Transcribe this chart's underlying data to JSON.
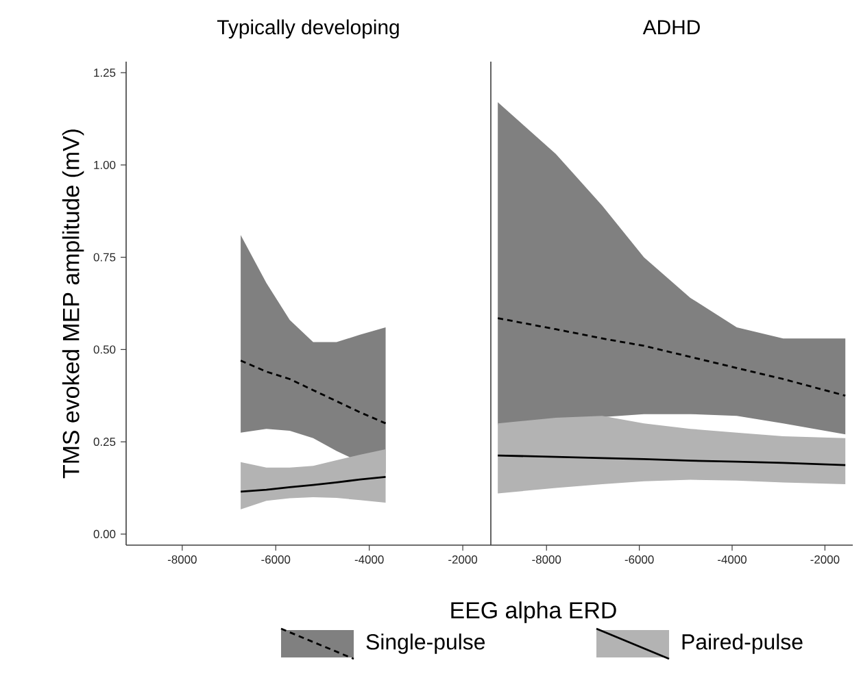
{
  "chart_data": [
    {
      "type": "line",
      "title": "Typically developing",
      "xlabel": "EEG alpha ERD",
      "ylabel": "TMS evoked MEP amplitude (mV)",
      "xlim": [
        -9200,
        -1400
      ],
      "ylim": [
        -0.03,
        1.28
      ],
      "xticks": [
        -8000,
        -6000,
        -4000,
        -2000
      ],
      "yticks": [
        {
          "value": 0,
          "label": "0.00"
        },
        {
          "value": 0.25,
          "label": "0.25"
        },
        {
          "value": 0.5,
          "label": "0.50"
        },
        {
          "value": 0.75,
          "label": "0.75"
        },
        {
          "value": 1,
          "label": "1.00"
        },
        {
          "value": 1.25,
          "label": "1.25"
        }
      ],
      "legend": "bottom",
      "grid": false,
      "series": [
        {
          "name": "Single-pulse",
          "color": "#000000",
          "line_style": "dashed",
          "x": [
            -6750,
            -6200,
            -5700,
            -5200,
            -4700,
            -4200,
            -3650
          ],
          "values": [
            0.47,
            0.44,
            0.42,
            0.39,
            0.36,
            0.33,
            0.3
          ],
          "lower": [
            0.275,
            0.285,
            0.28,
            0.26,
            0.225,
            0.195,
            0.165
          ],
          "upper": [
            0.81,
            0.68,
            0.58,
            0.52,
            0.52,
            0.54,
            0.56
          ]
        },
        {
          "name": "Paired-pulse",
          "color": "#000000",
          "line_style": "solid",
          "x": [
            -6750,
            -6200,
            -5700,
            -5200,
            -4700,
            -4200,
            -3650
          ],
          "values": [
            0.115,
            0.12,
            0.127,
            0.133,
            0.14,
            0.148,
            0.155
          ],
          "lower": [
            0.067,
            0.09,
            0.097,
            0.1,
            0.098,
            0.092,
            0.085
          ],
          "upper": [
            0.195,
            0.18,
            0.18,
            0.185,
            0.2,
            0.215,
            0.23
          ]
        }
      ]
    },
    {
      "type": "line",
      "title": "ADHD",
      "xlim": [
        -9200,
        -1400
      ],
      "ylim": [
        -0.03,
        1.28
      ],
      "tick_labels": "x",
      "xticks": [
        -8000,
        -6000,
        -4000,
        -2000
      ],
      "grid": false,
      "series": [
        {
          "color": "#000000",
          "line_style": "dashed",
          "x": [
            -9050,
            -7800,
            -6800,
            -5900,
            -4900,
            -3900,
            -2900,
            -1560
          ],
          "values": [
            0.585,
            0.555,
            0.53,
            0.51,
            0.48,
            0.45,
            0.42,
            0.375
          ],
          "lower": [
            0.295,
            0.31,
            0.317,
            0.325,
            0.325,
            0.32,
            0.3,
            0.27
          ],
          "upper": [
            1.17,
            1.03,
            0.89,
            0.75,
            0.64,
            0.56,
            0.53,
            0.53
          ]
        },
        {
          "color": "#000000",
          "line_style": "solid",
          "x": [
            -9050,
            -7800,
            -6800,
            -5900,
            -4900,
            -3900,
            -2900,
            -1560
          ],
          "values": [
            0.213,
            0.209,
            0.206,
            0.203,
            0.199,
            0.196,
            0.193,
            0.187
          ],
          "lower": [
            0.11,
            0.125,
            0.135,
            0.143,
            0.147,
            0.145,
            0.14,
            0.135
          ],
          "upper": [
            0.3,
            0.315,
            0.32,
            0.3,
            0.285,
            0.275,
            0.265,
            0.26
          ]
        }
      ]
    }
  ]
}
